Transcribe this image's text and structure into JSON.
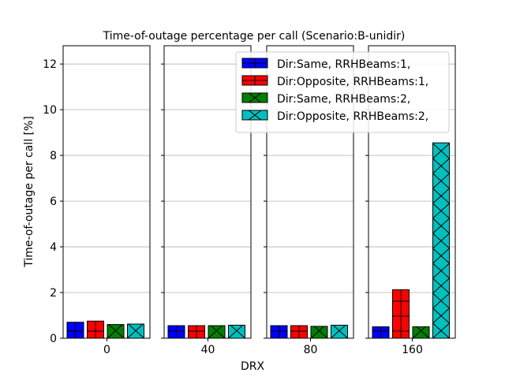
{
  "chart_data": {
    "type": "bar",
    "title": "Time-of-outage percentage per call (Scenario:B-unidir)",
    "xlabel": "DRX",
    "ylabel": "Time-of-outage per call [%]",
    "ylim": [
      0,
      12.8
    ],
    "yticks": [
      0,
      2,
      4,
      6,
      8,
      10,
      12
    ],
    "grid": true,
    "legend_position": "top-right",
    "panels": [
      "0",
      "40",
      "80",
      "160"
    ],
    "series": [
      {
        "name": "Dir:Same, RRHBeams:1,",
        "color": "#0000ff",
        "hatch": "plus",
        "values": [
          0.7,
          0.55,
          0.55,
          0.5
        ]
      },
      {
        "name": "Dir:Opposite, RRHBeams:1,",
        "color": "#ff0000",
        "hatch": "plus",
        "values": [
          0.75,
          0.55,
          0.55,
          2.12
        ]
      },
      {
        "name": "Dir:Same, RRHBeams:2,",
        "color": "#008000",
        "hatch": "cross",
        "values": [
          0.6,
          0.55,
          0.52,
          0.5
        ]
      },
      {
        "name": "Dir:Opposite, RRHBeams:2,",
        "color": "#00bfbf",
        "hatch": "cross",
        "values": [
          0.62,
          0.57,
          0.57,
          8.55
        ]
      }
    ]
  }
}
